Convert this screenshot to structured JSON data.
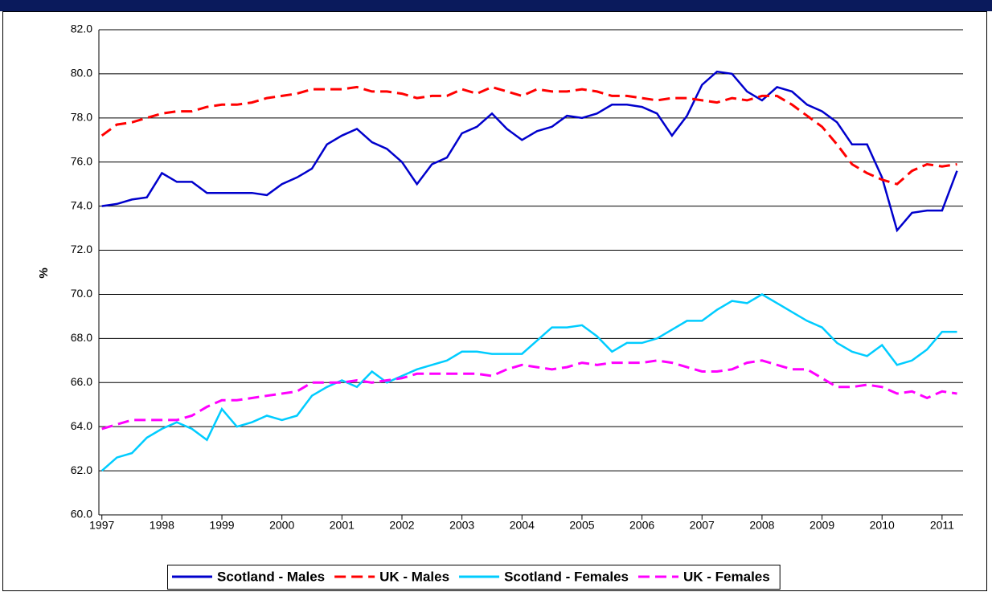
{
  "chart_data": {
    "type": "line",
    "y_label": "%",
    "x": [
      1997,
      1997.25,
      1997.5,
      1997.75,
      1998,
      1998.25,
      1998.5,
      1998.75,
      1999,
      1999.25,
      1999.5,
      1999.75,
      2000,
      2000.25,
      2000.5,
      2000.75,
      2001,
      2001.25,
      2001.5,
      2001.75,
      2002,
      2002.25,
      2002.5,
      2002.75,
      2003,
      2003.25,
      2003.5,
      2003.75,
      2004,
      2004.25,
      2004.5,
      2004.75,
      2005,
      2005.25,
      2005.5,
      2005.75,
      2006,
      2006.25,
      2006.5,
      2006.75,
      2007,
      2007.25,
      2007.5,
      2007.75,
      2008,
      2008.25,
      2008.5,
      2008.75,
      2009,
      2009.25,
      2009.5,
      2009.75,
      2010,
      2010.25,
      2010.5,
      2010.75,
      2011,
      2011.25
    ],
    "series": [
      {
        "name": "Scotland - Males",
        "color": "#0000cc",
        "dashed": false,
        "values": [
          74.0,
          74.1,
          74.3,
          74.4,
          75.5,
          75.1,
          75.1,
          74.6,
          74.6,
          74.6,
          74.6,
          74.5,
          75.0,
          75.3,
          75.7,
          76.8,
          77.2,
          77.5,
          76.9,
          76.6,
          76.0,
          75.0,
          75.9,
          76.2,
          77.3,
          77.6,
          78.2,
          77.5,
          77.0,
          77.4,
          77.6,
          78.1,
          78.0,
          78.2,
          78.6,
          78.6,
          78.5,
          78.2,
          77.2,
          78.1,
          79.5,
          80.1,
          80.0,
          79.2,
          78.8,
          79.4,
          79.2,
          78.6,
          78.3,
          77.8,
          76.8,
          76.8,
          75.3,
          72.9,
          73.7,
          73.8,
          73.8,
          75.6
        ]
      },
      {
        "name": "UK - Males",
        "color": "#ff0000",
        "dashed": true,
        "values": [
          77.2,
          77.7,
          77.8,
          78.0,
          78.2,
          78.3,
          78.3,
          78.5,
          78.6,
          78.6,
          78.7,
          78.9,
          79.0,
          79.1,
          79.3,
          79.3,
          79.3,
          79.4,
          79.2,
          79.2,
          79.1,
          78.9,
          79.0,
          79.0,
          79.3,
          79.1,
          79.4,
          79.2,
          79.0,
          79.3,
          79.2,
          79.2,
          79.3,
          79.2,
          79.0,
          79.0,
          78.9,
          78.8,
          78.9,
          78.9,
          78.8,
          78.7,
          78.9,
          78.8,
          79.0,
          79.0,
          78.6,
          78.1,
          77.6,
          76.8,
          75.9,
          75.5,
          75.2,
          75.0,
          75.6,
          75.9,
          75.8,
          75.9
        ]
      },
      {
        "name": "Scotland - Females",
        "color": "#00ccff",
        "dashed": false,
        "values": [
          62.0,
          62.6,
          62.8,
          63.5,
          63.9,
          64.2,
          63.9,
          63.4,
          64.8,
          64.0,
          64.2,
          64.5,
          64.3,
          64.5,
          65.4,
          65.8,
          66.1,
          65.8,
          66.5,
          66.0,
          66.3,
          66.6,
          66.8,
          67.0,
          67.4,
          67.4,
          67.3,
          67.3,
          67.3,
          67.9,
          68.5,
          68.5,
          68.6,
          68.1,
          67.4,
          67.8,
          67.8,
          68.0,
          68.4,
          68.8,
          68.8,
          69.3,
          69.7,
          69.6,
          70.0,
          69.6,
          69.2,
          68.8,
          68.5,
          67.8,
          67.4,
          67.2,
          67.7,
          66.8,
          67.0,
          67.5,
          68.3,
          68.3
        ]
      },
      {
        "name": "UK - Females",
        "color": "#ff00ff",
        "dashed": true,
        "values": [
          63.9,
          64.1,
          64.3,
          64.3,
          64.3,
          64.3,
          64.5,
          64.9,
          65.2,
          65.2,
          65.3,
          65.4,
          65.5,
          65.6,
          66.0,
          66.0,
          66.0,
          66.1,
          66.0,
          66.1,
          66.2,
          66.4,
          66.4,
          66.4,
          66.4,
          66.4,
          66.3,
          66.6,
          66.8,
          66.7,
          66.6,
          66.7,
          66.9,
          66.8,
          66.9,
          66.9,
          66.9,
          67.0,
          66.9,
          66.7,
          66.5,
          66.5,
          66.6,
          66.9,
          67.0,
          66.8,
          66.6,
          66.6,
          66.2,
          65.8,
          65.8,
          65.9,
          65.8,
          65.5,
          65.6,
          65.3,
          65.6,
          65.5
        ]
      }
    ],
    "xlim": [
      1996.95,
      2011.35
    ],
    "xticks": [
      1997,
      1998,
      1999,
      2000,
      2001,
      2002,
      2003,
      2004,
      2005,
      2006,
      2007,
      2008,
      2009,
      2010,
      2011
    ],
    "ylim": [
      60,
      82
    ],
    "yticks": [
      {
        "value": 60,
        "label": "60.0"
      },
      {
        "value": 62,
        "label": "62.0"
      },
      {
        "value": 64,
        "label": "64.0"
      },
      {
        "value": 66,
        "label": "66.0"
      },
      {
        "value": 68,
        "label": "68.0"
      },
      {
        "value": 70,
        "label": "70.0"
      },
      {
        "value": 72,
        "label": "72.0"
      },
      {
        "value": 74,
        "label": "74.0"
      },
      {
        "value": 76,
        "label": "76.0"
      },
      {
        "value": 78,
        "label": "78.0"
      },
      {
        "value": 80,
        "label": "80.0"
      },
      {
        "value": 82,
        "label": "82.0"
      }
    ],
    "grid": true,
    "legend": "bottom"
  }
}
